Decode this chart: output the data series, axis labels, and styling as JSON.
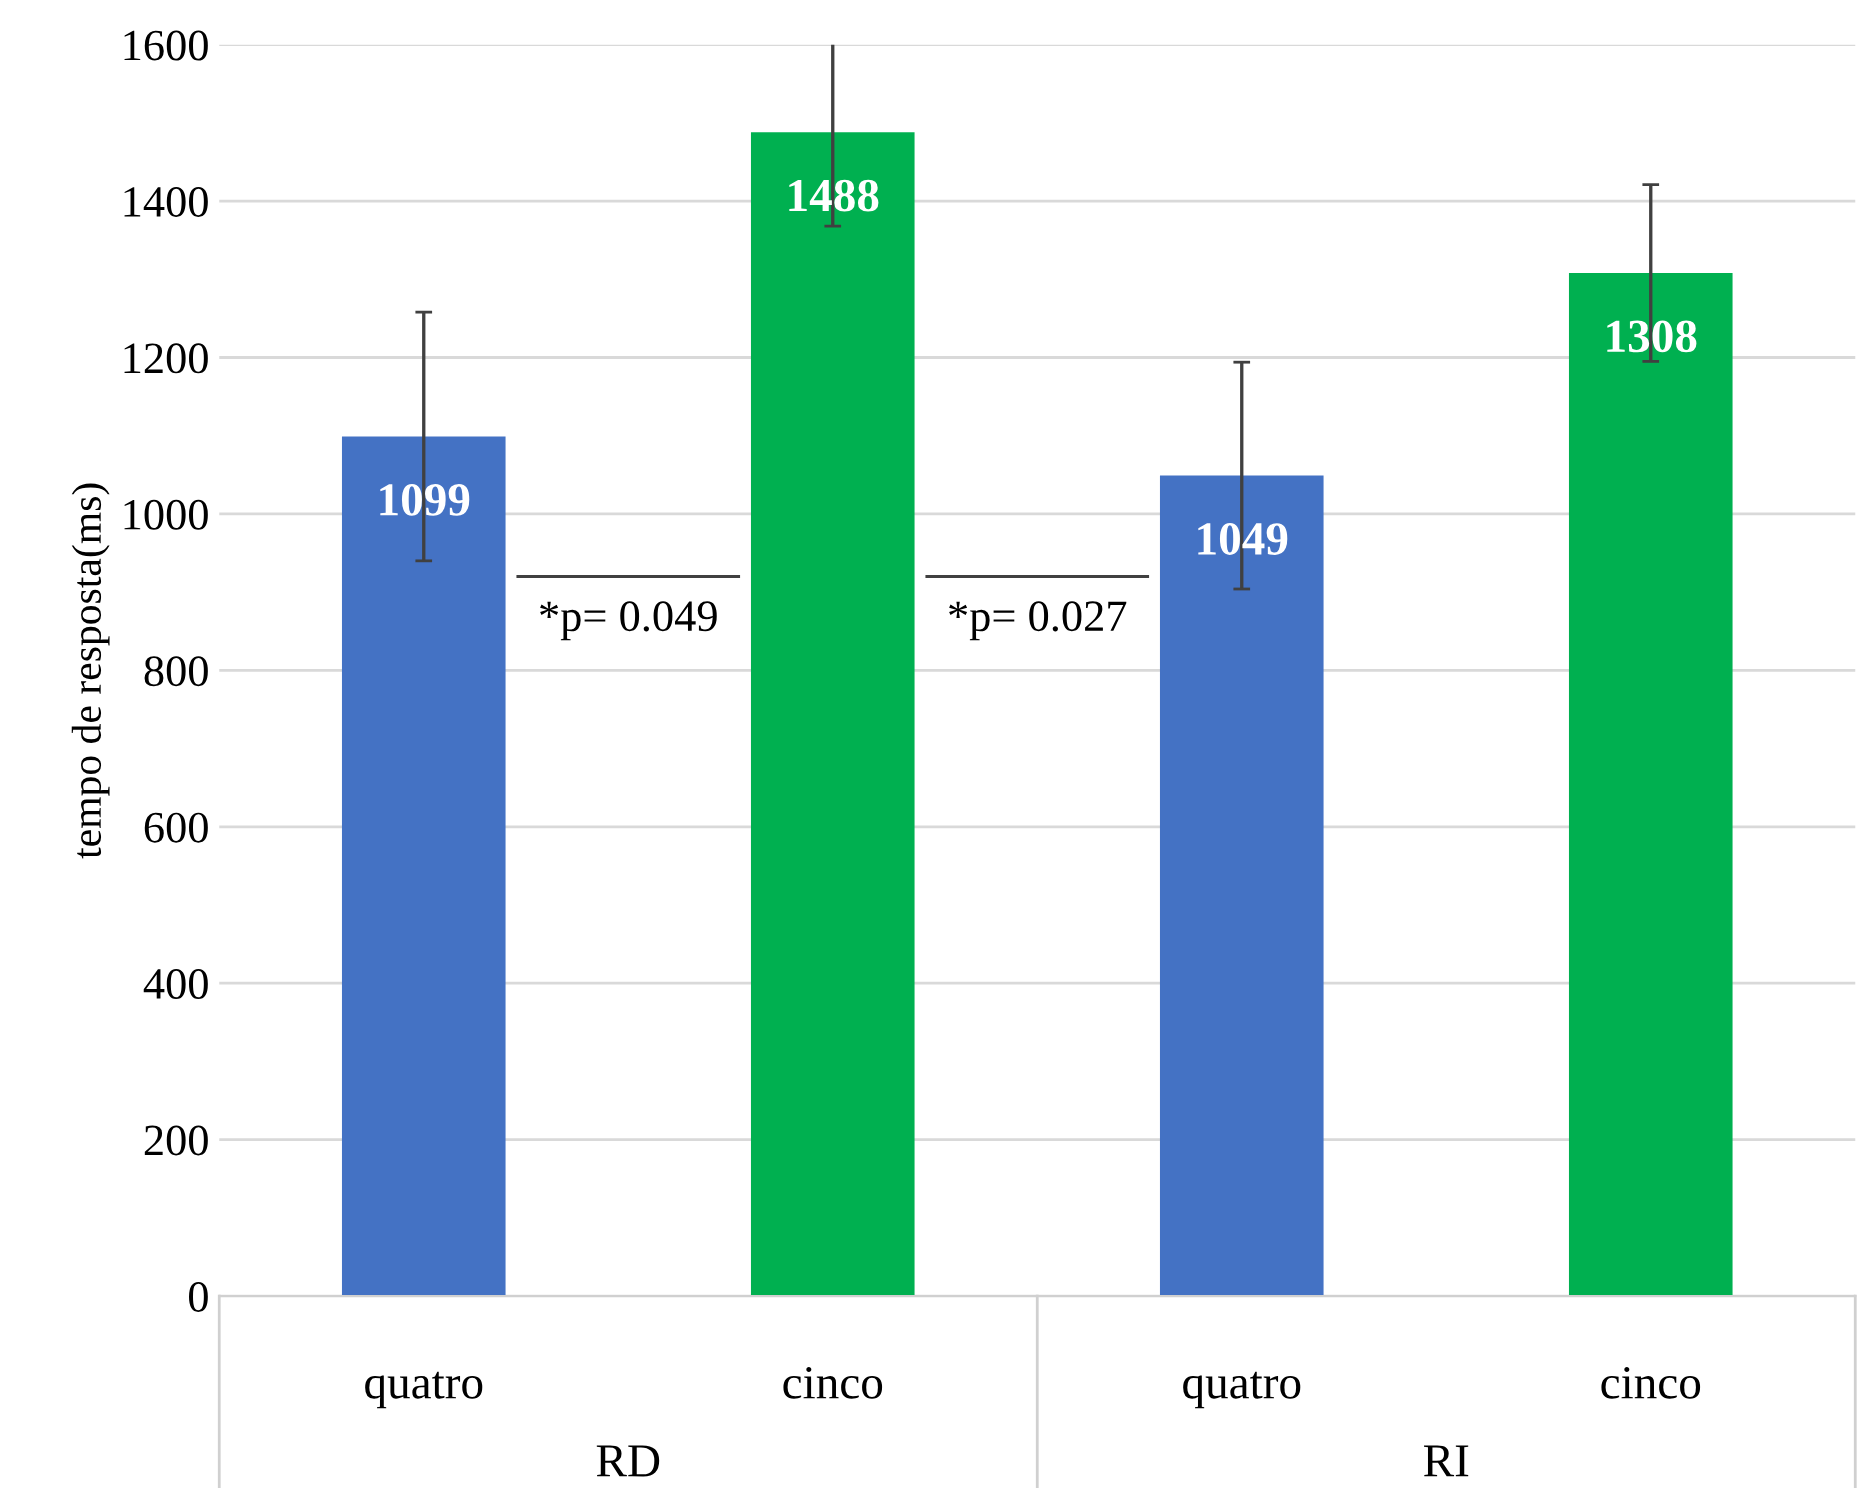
{
  "chart_data": {
    "type": "bar",
    "ylabel": "tempo de resposta(ms)",
    "categories": [
      "quatro",
      "cinco",
      "quatro",
      "cinco"
    ],
    "values": [
      1099,
      1488,
      1049,
      1308
    ],
    "colors": [
      "#4472c4",
      "#00b050",
      "#4472c4",
      "#00b050"
    ],
    "errors": [
      159,
      120,
      145,
      113
    ],
    "data_labels": true,
    "ylim": [
      0,
      1600
    ],
    "yticks": [
      0,
      200,
      400,
      600,
      800,
      1000,
      1200,
      1400,
      1600
    ],
    "grid": "y",
    "annotations": [
      "*p= 0.049",
      "*p= 0.027",
      "RD",
      "RI"
    ]
  }
}
